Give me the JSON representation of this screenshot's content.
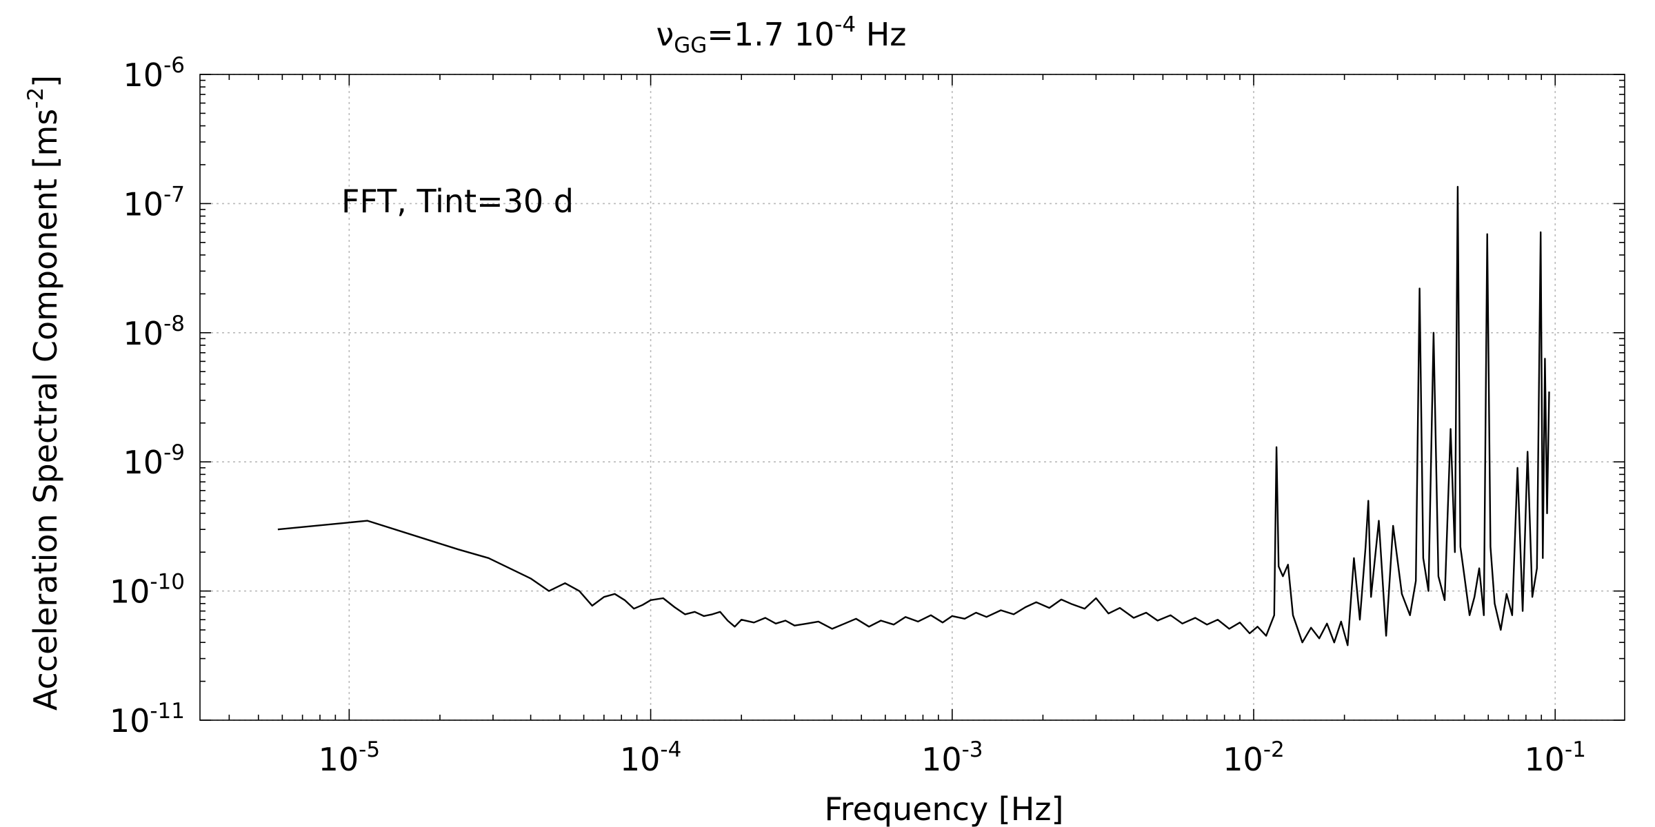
{
  "chart_data": {
    "type": "line",
    "title_base": "ν",
    "title_sub": "GG",
    "title_rest": "=1.7 10",
    "title_exp": "-4",
    "title_unit": " Hz",
    "xlabel": "Frequency [Hz]",
    "ylabel_text": "Acceleration Spectral Component [ms",
    "ylabel_exp": "-2",
    "ylabel_close": "]",
    "annotation": "FFT, Tint=30 d",
    "x_scale": "log",
    "y_scale": "log",
    "xlim": [
      3.2e-06,
      0.17
    ],
    "ylim": [
      1e-11,
      1e-06
    ],
    "grid": true,
    "x_ticks": [
      {
        "base": "10",
        "exp": "-5",
        "value": 1e-05
      },
      {
        "base": "10",
        "exp": "-4",
        "value": 0.0001
      },
      {
        "base": "10",
        "exp": "-3",
        "value": 0.001
      },
      {
        "base": "10",
        "exp": "-2",
        "value": 0.01
      },
      {
        "base": "10",
        "exp": "-1",
        "value": 0.1
      }
    ],
    "y_ticks": [
      {
        "base": "10",
        "exp": "-6",
        "value": 1e-06
      },
      {
        "base": "10",
        "exp": "-7",
        "value": 1e-07
      },
      {
        "base": "10",
        "exp": "-8",
        "value": 1e-08
      },
      {
        "base": "10",
        "exp": "-9",
        "value": 1e-09
      },
      {
        "base": "10",
        "exp": "-10",
        "value": 1e-10
      },
      {
        "base": "10",
        "exp": "-11",
        "value": 1e-11
      }
    ],
    "series": [
      {
        "color": "#000000",
        "x": [
          5.8e-06,
          1.15e-05,
          2.3e-05,
          2.9e-05,
          4e-05,
          4.6e-05,
          5.2e-05,
          5.8e-05,
          6.4e-05,
          7e-05,
          7.6e-05,
          8.2e-05,
          8.8e-05,
          9.4e-05,
          0.0001,
          0.00011,
          0.00012,
          0.00013,
          0.00014,
          0.00015,
          0.00016,
          0.00017,
          0.00018,
          0.00019,
          0.0002,
          0.00022,
          0.00024,
          0.00026,
          0.00028,
          0.0003,
          0.00033,
          0.00036,
          0.0004,
          0.00044,
          0.00048,
          0.00053,
          0.00058,
          0.00064,
          0.0007,
          0.00077,
          0.00085,
          0.00093,
          0.001,
          0.0011,
          0.0012,
          0.0013,
          0.00145,
          0.0016,
          0.00175,
          0.0019,
          0.0021,
          0.0023,
          0.0025,
          0.00275,
          0.003,
          0.0033,
          0.0036,
          0.004,
          0.0044,
          0.0048,
          0.0053,
          0.0058,
          0.0064,
          0.007,
          0.0076,
          0.0083,
          0.009,
          0.0097,
          0.0103,
          0.011,
          0.0117,
          0.0119,
          0.0121,
          0.0125,
          0.013,
          0.0135,
          0.0145,
          0.0155,
          0.0165,
          0.0175,
          0.0185,
          0.0195,
          0.0205,
          0.0215,
          0.0225,
          0.0235,
          0.024,
          0.0245,
          0.026,
          0.0275,
          0.029,
          0.031,
          0.033,
          0.0345,
          0.0355,
          0.0365,
          0.038,
          0.0395,
          0.041,
          0.043,
          0.045,
          0.0465,
          0.0475,
          0.0485,
          0.05,
          0.052,
          0.054,
          0.056,
          0.058,
          0.0595,
          0.061,
          0.063,
          0.066,
          0.069,
          0.072,
          0.075,
          0.078,
          0.081,
          0.084,
          0.087,
          0.0895,
          0.091,
          0.0925,
          0.094,
          0.0955
        ],
        "y": [
          3e-10,
          3.5e-10,
          2.1e-10,
          1.8e-10,
          1.25e-10,
          1e-10,
          1.15e-10,
          1e-10,
          7.7e-11,
          9e-11,
          9.5e-11,
          8.5e-11,
          7.3e-11,
          7.8e-11,
          8.5e-11,
          8.8e-11,
          7.5e-11,
          6.6e-11,
          6.9e-11,
          6.4e-11,
          6.6e-11,
          6.9e-11,
          5.9e-11,
          5.3e-11,
          6e-11,
          5.7e-11,
          6.2e-11,
          5.6e-11,
          5.9e-11,
          5.4e-11,
          5.6e-11,
          5.8e-11,
          5.1e-11,
          5.6e-11,
          6.1e-11,
          5.3e-11,
          5.9e-11,
          5.5e-11,
          6.3e-11,
          5.8e-11,
          6.5e-11,
          5.7e-11,
          6.4e-11,
          6.1e-11,
          6.8e-11,
          6.3e-11,
          7.1e-11,
          6.6e-11,
          7.5e-11,
          8.2e-11,
          7.4e-11,
          8.6e-11,
          7.9e-11,
          7.3e-11,
          8.8e-11,
          6.7e-11,
          7.4e-11,
          6.2e-11,
          6.8e-11,
          5.9e-11,
          6.5e-11,
          5.6e-11,
          6.2e-11,
          5.5e-11,
          6e-11,
          5.1e-11,
          5.7e-11,
          4.7e-11,
          5.3e-11,
          4.5e-11,
          6.5e-11,
          1.3e-09,
          1.55e-10,
          1.3e-10,
          1.6e-10,
          6.5e-11,
          4e-11,
          5.2e-11,
          4.3e-11,
          5.6e-11,
          4e-11,
          5.8e-11,
          3.8e-11,
          1.8e-10,
          6e-11,
          2.2e-10,
          5e-10,
          9e-11,
          3.5e-10,
          4.5e-11,
          3.2e-10,
          9.5e-11,
          6.5e-11,
          1.2e-10,
          2.2e-08,
          1.8e-10,
          1e-10,
          1e-08,
          1.3e-10,
          8.5e-11,
          1.8e-09,
          2e-10,
          1.35e-07,
          2.2e-10,
          1.3e-10,
          6.5e-11,
          9e-11,
          1.5e-10,
          6.5e-11,
          5.8e-08,
          2.2e-10,
          8e-11,
          5e-11,
          9.5e-11,
          6.5e-11,
          9e-10,
          7e-11,
          1.2e-09,
          9e-11,
          1.5e-10,
          6e-08,
          1.8e-10,
          6.3e-09,
          4e-10,
          3.5e-09
        ]
      }
    ]
  }
}
